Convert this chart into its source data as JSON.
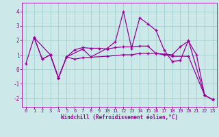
{
  "title": "",
  "xlabel": "Windchill (Refroidissement éolien,°C)",
  "line1_x": [
    0,
    1,
    2,
    3,
    4,
    5,
    6,
    7,
    8,
    9,
    10,
    11,
    12,
    13,
    14,
    15,
    16,
    17,
    18,
    19,
    20,
    21,
    22,
    23
  ],
  "line1_y": [
    0.4,
    2.2,
    0.7,
    1.0,
    -0.6,
    0.85,
    1.35,
    1.5,
    1.45,
    1.45,
    1.4,
    1.5,
    1.55,
    1.55,
    1.6,
    1.6,
    1.1,
    1.05,
    1.0,
    1.55,
    1.95,
    1.0,
    -1.8,
    -2.1
  ],
  "line2_x": [
    1,
    3,
    4,
    5,
    7,
    8,
    10,
    11,
    12,
    13,
    14,
    15,
    16,
    17,
    18,
    19,
    20,
    22,
    23
  ],
  "line2_y": [
    2.2,
    1.0,
    -0.6,
    0.85,
    1.4,
    0.85,
    1.45,
    1.9,
    4.0,
    1.45,
    3.55,
    3.15,
    2.7,
    1.35,
    0.55,
    0.6,
    2.0,
    -1.8,
    -2.1
  ],
  "line3_x": [
    1,
    2,
    3,
    4,
    5,
    6,
    7,
    10,
    12,
    13,
    14,
    15,
    16,
    17,
    18,
    20,
    22,
    23
  ],
  "line3_y": [
    2.2,
    0.7,
    1.0,
    -0.6,
    0.85,
    0.7,
    0.8,
    0.9,
    1.0,
    1.0,
    1.1,
    1.1,
    1.1,
    1.0,
    0.9,
    0.9,
    -1.8,
    -2.1
  ],
  "bg_color": "#cce8e8",
  "line_color": "#990099",
  "grid_color": "#99cccc",
  "xlim": [
    -0.5,
    23.5
  ],
  "ylim": [
    -2.6,
    4.6
  ],
  "yticks": [
    -2,
    -1,
    0,
    1,
    2,
    3,
    4
  ],
  "xticks": [
    0,
    1,
    2,
    3,
    4,
    5,
    6,
    7,
    8,
    9,
    10,
    11,
    12,
    13,
    14,
    15,
    16,
    17,
    18,
    19,
    20,
    21,
    22,
    23
  ],
  "marker": "+",
  "markersize": 3.5,
  "linewidth": 0.9,
  "tick_fontsize": 5.0,
  "xlabel_fontsize": 5.5
}
